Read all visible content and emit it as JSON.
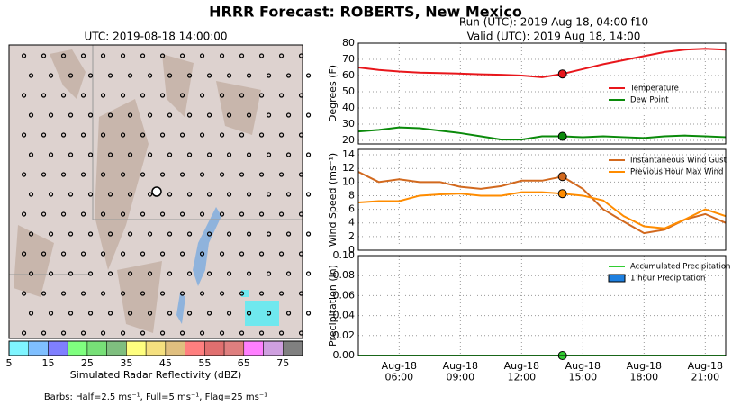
{
  "title": "HRRR Forecast: ROBERTS, New Mexico",
  "chart_data": [
    {
      "type": "map",
      "title": "UTC: 2019-08-18 14:00:00"
    },
    {
      "type": "colorbar",
      "xlabel": "Simulated Radar Reflectivity (dBZ)",
      "note": "Barbs: Half=2.5 ms⁻¹, Full=5 ms⁻¹, Flag=25 ms⁻¹",
      "bins": [
        5,
        10,
        15,
        20,
        25,
        30,
        35,
        40,
        45,
        50,
        55,
        60,
        65,
        70,
        75,
        80
      ],
      "colors": [
        "#7ff5ff",
        "#7fbfff",
        "#7f7fff",
        "#7fff7f",
        "#77e077",
        "#7fbf7f",
        "#ffff7f",
        "#f5e07f",
        "#e0bf7f",
        "#ff7f7f",
        "#e06f6f",
        "#df7f7f",
        "#ff7fff",
        "#cfa0e0",
        "#808080"
      ],
      "xlim": [
        5,
        80
      ],
      "xticks": [
        5,
        15,
        25,
        35,
        45,
        55,
        65,
        75
      ]
    },
    {
      "type": "line",
      "title": "Run (UTC): 2019 Aug 18, 04:00 f10",
      "subtitle": "Valid (UTC): 2019 Aug 18, 14:00",
      "ylabel": "Degrees (F)",
      "legend": "center right",
      "grid": true,
      "marker_x": "2019-08-18T14:00",
      "x": [
        "2019-08-18T04:00",
        "2019-08-18T05:00",
        "2019-08-18T06:00",
        "2019-08-18T07:00",
        "2019-08-18T08:00",
        "2019-08-18T09:00",
        "2019-08-18T10:00",
        "2019-08-18T11:00",
        "2019-08-18T12:00",
        "2019-08-18T13:00",
        "2019-08-18T14:00",
        "2019-08-18T15:00",
        "2019-08-18T16:00",
        "2019-08-18T17:00",
        "2019-08-18T18:00",
        "2019-08-18T19:00",
        "2019-08-18T20:00",
        "2019-08-18T21:00",
        "2019-08-18T22:00"
      ],
      "series": [
        {
          "name": "Temperature",
          "color": "#e8161b",
          "values": [
            65,
            63.5,
            62.5,
            61.8,
            61.5,
            61.2,
            60.8,
            60.5,
            60,
            59,
            61,
            64,
            67,
            69.5,
            72,
            74.5,
            76,
            76.5,
            76
          ]
        },
        {
          "name": "Dew Point",
          "color": "#0a8a0a",
          "values": [
            25.5,
            26.5,
            28,
            27.5,
            26,
            24.5,
            22.5,
            20.5,
            20.5,
            22.5,
            22.5,
            22,
            22.5,
            22,
            21.5,
            22.5,
            23,
            22.5,
            22
          ]
        }
      ],
      "xlim": [
        "2019-08-18T04:00",
        "2019-08-18T22:00"
      ],
      "ylim": [
        17.8,
        80
      ],
      "yticks": [
        20,
        30,
        40,
        50,
        60,
        70,
        80
      ]
    },
    {
      "type": "line",
      "ylabel": "Wind Speed (ms⁻¹)",
      "legend": "upper right",
      "grid": true,
      "marker_x": "2019-08-18T14:00",
      "x": [
        "2019-08-18T04:00",
        "2019-08-18T05:00",
        "2019-08-18T06:00",
        "2019-08-18T07:00",
        "2019-08-18T08:00",
        "2019-08-18T09:00",
        "2019-08-18T10:00",
        "2019-08-18T11:00",
        "2019-08-18T12:00",
        "2019-08-18T13:00",
        "2019-08-18T14:00",
        "2019-08-18T15:00",
        "2019-08-18T16:00",
        "2019-08-18T17:00",
        "2019-08-18T18:00",
        "2019-08-18T19:00",
        "2019-08-18T20:00",
        "2019-08-18T21:00",
        "2019-08-18T22:00"
      ],
      "series": [
        {
          "name": "Instantaneous Wind Gust",
          "color": "#d2691e",
          "values": [
            11.5,
            10,
            10.4,
            10,
            10,
            9.3,
            9,
            9.4,
            10.2,
            10.2,
            10.8,
            9,
            6,
            4.2,
            2.5,
            3,
            4.5,
            5.3,
            4
          ]
        },
        {
          "name": "Previous Hour Max Wind",
          "color": "#ff8c00",
          "values": [
            7,
            7.2,
            7.2,
            8,
            8.2,
            8.3,
            8,
            8,
            8.5,
            8.5,
            8.3,
            8,
            7.3,
            5,
            3.5,
            3.2,
            4.5,
            6,
            5
          ]
        }
      ],
      "xlim": [
        "2019-08-18T04:00",
        "2019-08-18T22:00"
      ],
      "ylim": [
        0,
        14.8
      ],
      "yticks": [
        0,
        2,
        4,
        6,
        8,
        10,
        12,
        14
      ]
    },
    {
      "type": "line",
      "ylabel": "Precipitation (in)",
      "legend": "upper right",
      "grid": true,
      "marker_x": "2019-08-18T14:00",
      "x": [
        "2019-08-18T04:00",
        "2019-08-18T05:00",
        "2019-08-18T06:00",
        "2019-08-18T07:00",
        "2019-08-18T08:00",
        "2019-08-18T09:00",
        "2019-08-18T10:00",
        "2019-08-18T11:00",
        "2019-08-18T12:00",
        "2019-08-18T13:00",
        "2019-08-18T14:00",
        "2019-08-18T15:00",
        "2019-08-18T16:00",
        "2019-08-18T17:00",
        "2019-08-18T18:00",
        "2019-08-18T19:00",
        "2019-08-18T20:00",
        "2019-08-18T21:00",
        "2019-08-18T22:00"
      ],
      "series": [
        {
          "name": "Accumulated Precipitation",
          "color": "#32cd32",
          "values": [
            0,
            0,
            0,
            0,
            0,
            0,
            0,
            0,
            0,
            0,
            0,
            0,
            0,
            0,
            0,
            0,
            0,
            0,
            0
          ]
        },
        {
          "name": "1 hour Precipitation",
          "color": "#1e7fdf",
          "kind": "bar",
          "values": [
            0,
            0,
            0,
            0,
            0,
            0,
            0,
            0,
            0,
            0,
            0,
            0,
            0,
            0,
            0,
            0,
            0,
            0,
            0
          ]
        }
      ],
      "xlim": [
        "2019-08-18T04:00",
        "2019-08-18T22:00"
      ],
      "ylim": [
        0,
        0.1
      ],
      "yticks": [
        {
          "value": 0,
          "label": "0.00"
        },
        {
          "value": 0.02,
          "label": "0.02"
        },
        {
          "value": 0.04,
          "label": "0.04"
        },
        {
          "value": 0.06,
          "label": "0.06"
        },
        {
          "value": 0.08,
          "label": "0.08"
        },
        {
          "value": 0.1,
          "label": "0.10"
        }
      ],
      "xticks": [
        {
          "value": "2019-08-18T06:00",
          "label": "Aug-18 06:00"
        },
        {
          "value": "2019-08-18T09:00",
          "label": "Aug-18 09:00"
        },
        {
          "value": "2019-08-18T12:00",
          "label": "Aug-18 12:00"
        },
        {
          "value": "2019-08-18T15:00",
          "label": "Aug-18 15:00"
        },
        {
          "value": "2019-08-18T18:00",
          "label": "Aug-18 18:00"
        },
        {
          "value": "2019-08-18T21:00",
          "label": "Aug-18 21:00"
        }
      ]
    }
  ]
}
